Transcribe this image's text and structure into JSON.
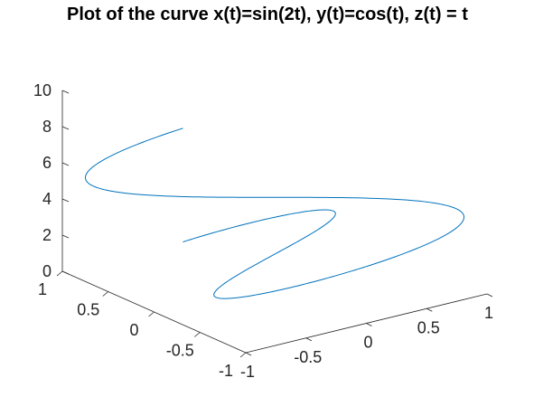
{
  "chart_data": {
    "type": "line",
    "title": "Plot of the curve x(t)=sin(2t), y(t)=cos(t), z(t) = t",
    "xlabel": "",
    "ylabel": "",
    "zlabel": "",
    "xlim": [
      -1,
      1
    ],
    "ylim": [
      -1,
      1
    ],
    "zlim": [
      0,
      10
    ],
    "x_ticks": [
      "-1",
      "-0.5",
      "0",
      "0.5",
      "1"
    ],
    "y_ticks": [
      "-1",
      "-0.5",
      "0",
      "0.5",
      "1"
    ],
    "z_ticks": [
      "0",
      "2",
      "4",
      "6",
      "8",
      "10"
    ],
    "grid": false,
    "series": [
      {
        "x_expr": "sin(2t)",
        "y_expr": "cos(t)",
        "z_expr": "t",
        "t_range": [
          0,
          6.283
        ],
        "color": "#0072BD"
      }
    ]
  }
}
